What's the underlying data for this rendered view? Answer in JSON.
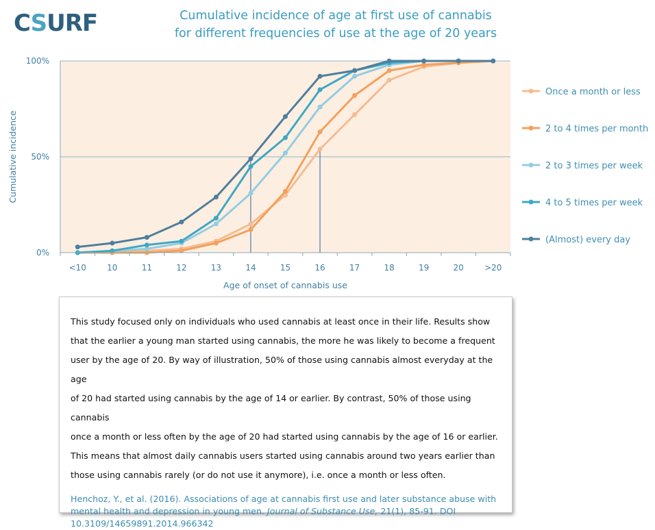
{
  "logo": {
    "part1": "C",
    "part2": "S",
    "part3": "URF"
  },
  "colors": {
    "title": "#3a9cc0",
    "plot_background": "#fdeee2",
    "grid": "#4a8fb0",
    "axis_text": "#3f7fa0",
    "body_text": "#111111",
    "citation_text": "#3a8cb0"
  },
  "chart_data": {
    "type": "line",
    "title": "Cumulative incidence of age at first use of cannabis",
    "subtitle": "for different frequencies of use at the age of 20 years",
    "xlabel": "Age of onset of cannabis use",
    "ylabel": "Cumulative incidence",
    "categories": [
      "<10",
      "10",
      "11",
      "12",
      "13",
      "14",
      "15",
      "16",
      "17",
      "18",
      "19",
      "20",
      ">20"
    ],
    "yticks": [
      {
        "value": 0,
        "label": "0%"
      },
      {
        "value": 50,
        "label": "50%"
      },
      {
        "value": 100,
        "label": "100%"
      }
    ],
    "ylim": [
      0,
      100
    ],
    "grid": "horizontal lines at 50% and 100%",
    "legend_position": "right",
    "series": [
      {
        "name": "Once a month or less",
        "color": "#f5bc91",
        "values": [
          0,
          0,
          1,
          2,
          6,
          15,
          30,
          54,
          72,
          90,
          97,
          99,
          100
        ]
      },
      {
        "name": "2 to 4 times per month",
        "color": "#f2a15c",
        "values": [
          0,
          0,
          0,
          1,
          5,
          12,
          32,
          63,
          82,
          95,
          98,
          99,
          100
        ]
      },
      {
        "name": "2 to 3 times per week",
        "color": "#93cde0",
        "values": [
          0,
          1,
          2,
          5,
          15,
          31,
          52,
          76,
          92,
          98,
          100,
          100,
          100
        ]
      },
      {
        "name": "4 to 5 times per week",
        "color": "#3ea8c4",
        "values": [
          0,
          1,
          4,
          6,
          18,
          45,
          60,
          85,
          95,
          99,
          100,
          100,
          100
        ]
      },
      {
        "name": "(Almost) every day",
        "color": "#4e7f9c",
        "values": [
          3,
          5,
          8,
          16,
          29,
          49,
          71,
          92,
          95,
          100,
          100,
          100,
          100
        ]
      }
    ],
    "annotations": [
      {
        "type": "vertical-line",
        "x": "14",
        "from": 0,
        "to": 49
      },
      {
        "type": "vertical-line",
        "x": "16",
        "from": 0,
        "to": 54
      }
    ]
  },
  "text_box": {
    "lines": [
      "This study focused only on individuals who used cannabis at least once in their life. Results show",
      "that the earlier a young man started using cannabis, the more he was likely to become a frequent",
      "user by the age of 20. By way of illustration, 50% of those using cannabis almost everyday at the age",
      "of 20 had started using cannabis by the age of 14 or earlier. By contrast, 50% of those using cannabis",
      "once a month or less often by the age of 20 had started using cannabis by the age of 16 or earlier.",
      "This means that almost daily cannabis users started using cannabis around two years earlier than",
      "those using cannabis rarely (or do not use it anymore), i.e. once a month or less often."
    ],
    "citation": {
      "authors": "Henchoz, Y., et al. (2016). Associations of age at cannabis first use and later substance abuse with mental health and depression in young men.",
      "journal": "Journal of Substance Use,",
      "details": "21(1), 85-91. DOI 10.3109/14659891.2014.966342"
    }
  }
}
